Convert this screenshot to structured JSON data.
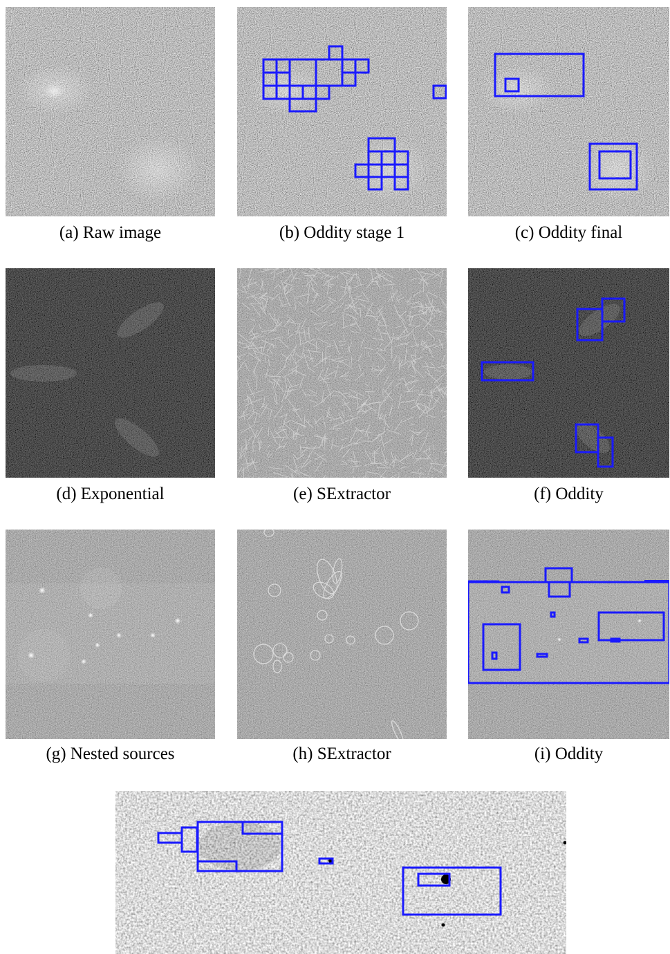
{
  "figure": {
    "panels": [
      {
        "id": "a",
        "caption": "(a) Raw image"
      },
      {
        "id": "b",
        "caption": "(b) Oddity stage 1"
      },
      {
        "id": "c",
        "caption": "(c) Oddity final"
      },
      {
        "id": "d",
        "caption": "(d) Exponential"
      },
      {
        "id": "e",
        "caption": "(e) SExtractor"
      },
      {
        "id": "f",
        "caption": "(f) Oddity"
      },
      {
        "id": "g",
        "caption": "(g) Nested sources"
      },
      {
        "id": "h",
        "caption": "(h) SExtractor"
      },
      {
        "id": "i",
        "caption": "(i) Oddity"
      }
    ]
  },
  "colors": {
    "detection_box": "#1a1aff",
    "sextractor_ellipse": "#dcdcdc",
    "noise_gray": "#808080",
    "noise_dark": "#0c0c0c",
    "noise_mid": "#4a4a4a",
    "noise_light": "#b0b0b0"
  }
}
